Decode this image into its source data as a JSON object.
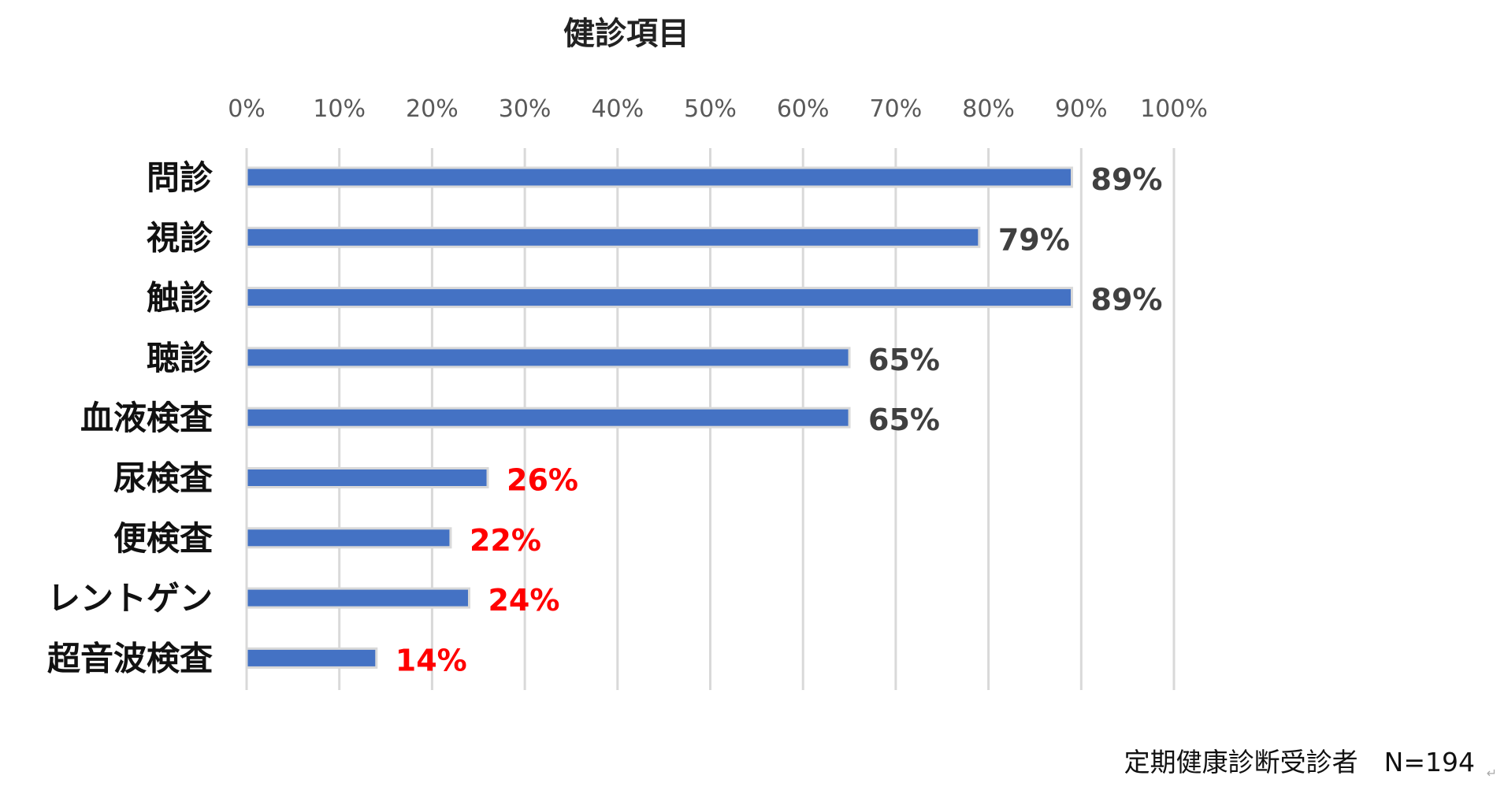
{
  "chart_data": {
    "type": "bar",
    "orientation": "horizontal",
    "title": "健診項目",
    "categories": [
      "問診",
      "視診",
      "触診",
      "聴診",
      "血液検査",
      "尿検査",
      "便検査",
      "レントゲン",
      "超音波検査"
    ],
    "values": [
      89,
      79,
      89,
      65,
      65,
      26,
      22,
      24,
      14
    ],
    "value_labels": [
      "89%",
      "79%",
      "89%",
      "65%",
      "65%",
      "26%",
      "22%",
      "24%",
      "14%"
    ],
    "xlim": [
      0,
      100
    ],
    "x_ticks": [
      "0%",
      "10%",
      "20%",
      "30%",
      "40%",
      "50%",
      "60%",
      "70%",
      "80%",
      "90%",
      "100%"
    ],
    "x_axis_position": "top",
    "grid": true,
    "legend": "none",
    "bar_color": "#4472C4",
    "label_color_default": "#404040",
    "label_color_highlight": "#FF0000",
    "highlight_threshold": 30
  },
  "footnote": "定期健康診断受診者　N=194",
  "footnote_mark": "↵"
}
